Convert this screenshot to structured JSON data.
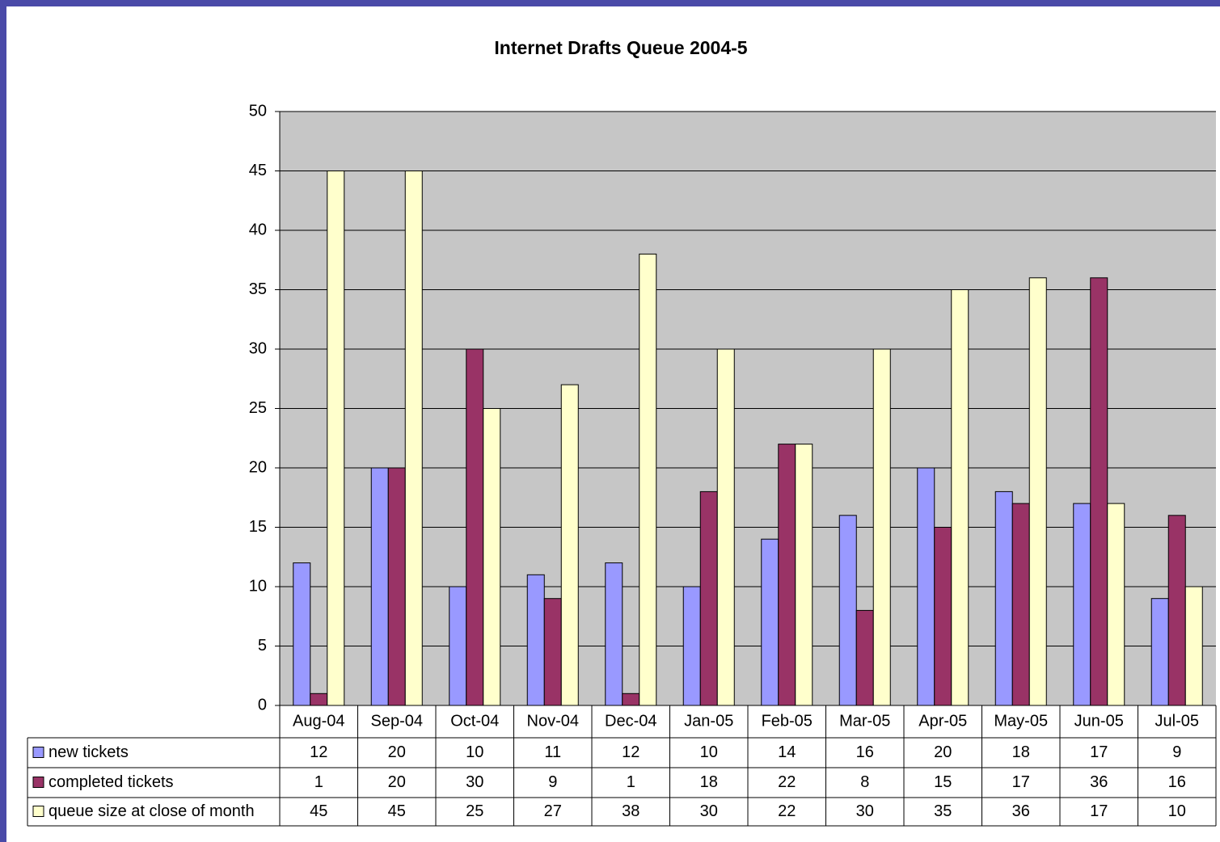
{
  "chart_data": {
    "type": "bar",
    "title": "Internet Drafts Queue 2004-5",
    "categories": [
      "Aug-04",
      "Sep-04",
      "Oct-04",
      "Nov-04",
      "Dec-04",
      "Jan-05",
      "Feb-05",
      "Mar-05",
      "Apr-05",
      "May-05",
      "Jun-05",
      "Jul-05"
    ],
    "series": [
      {
        "name": "new tickets",
        "color": "#9999ff",
        "values": [
          12,
          20,
          10,
          11,
          12,
          10,
          14,
          16,
          20,
          18,
          17,
          9
        ]
      },
      {
        "name": "completed tickets",
        "color": "#993366",
        "values": [
          1,
          20,
          30,
          9,
          1,
          18,
          22,
          8,
          15,
          17,
          36,
          16
        ]
      },
      {
        "name": "queue size at close of month",
        "color": "#ffffcc",
        "values": [
          45,
          45,
          25,
          27,
          38,
          30,
          22,
          30,
          35,
          36,
          17,
          10
        ]
      }
    ],
    "ylim": [
      0,
      50
    ],
    "yticks": [
      0,
      5,
      10,
      15,
      20,
      25,
      30,
      35,
      40,
      45,
      50
    ],
    "grid": true
  }
}
